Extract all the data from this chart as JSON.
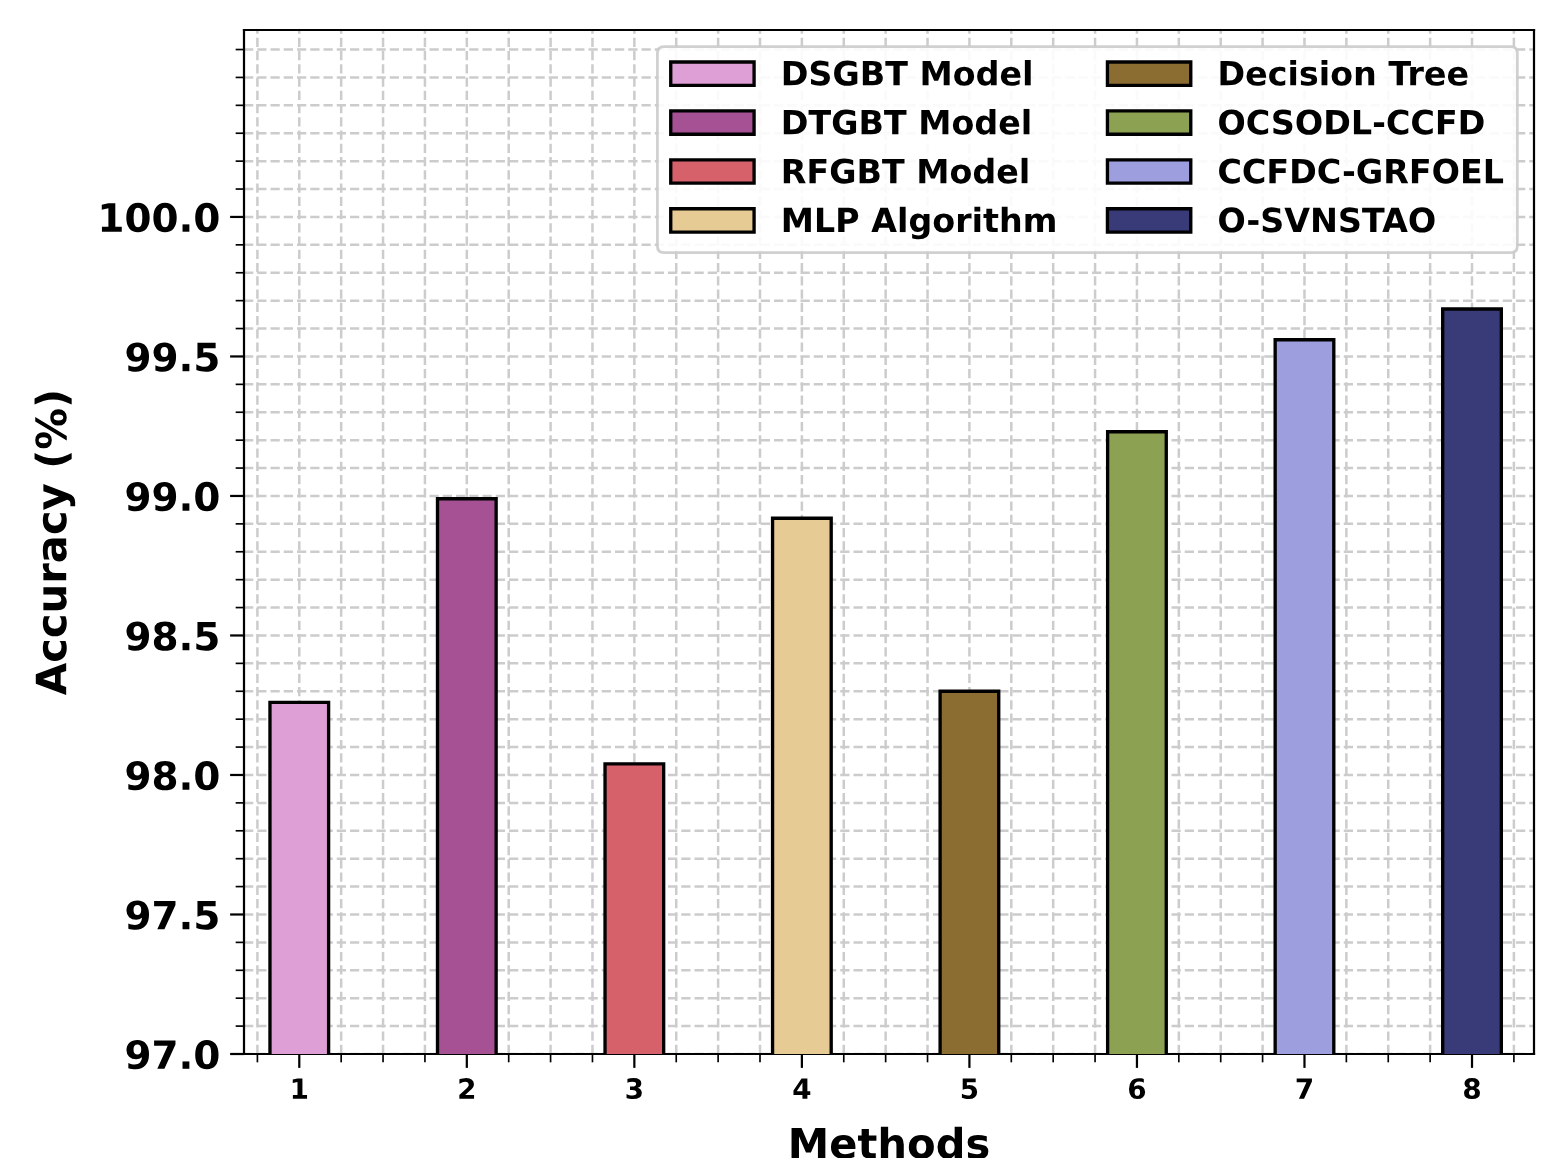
{
  "chart_data": {
    "type": "bar",
    "xlabel": "Methods",
    "ylabel": "Accuracy (%)",
    "categories": [
      "1",
      "2",
      "3",
      "4",
      "5",
      "6",
      "7",
      "8"
    ],
    "series": [
      {
        "name": "DSGBT Model",
        "color": "#de9ed6",
        "values": [
          98.26,
          null,
          null,
          null,
          null,
          null,
          null,
          null
        ]
      },
      {
        "name": "DTGBT Model",
        "color": "#a55194",
        "values": [
          null,
          98.99,
          null,
          null,
          null,
          null,
          null,
          null
        ]
      },
      {
        "name": "RFGBT Model",
        "color": "#d6616b",
        "values": [
          null,
          null,
          98.04,
          null,
          null,
          null,
          null,
          null
        ]
      },
      {
        "name": "MLP Algorithm",
        "color": "#e7cb94",
        "values": [
          null,
          null,
          null,
          98.92,
          null,
          null,
          null,
          null
        ]
      },
      {
        "name": "Decision Tree",
        "color": "#8c6d31",
        "values": [
          null,
          null,
          null,
          null,
          98.3,
          null,
          null,
          null
        ]
      },
      {
        "name": "OCSODL-CCFD",
        "color": "#8ca252",
        "values": [
          null,
          null,
          null,
          null,
          null,
          99.23,
          null,
          null
        ]
      },
      {
        "name": "CCFDC-GRFOEL",
        "color": "#9c9ede",
        "values": [
          null,
          null,
          null,
          null,
          null,
          null,
          99.56,
          null
        ]
      },
      {
        "name": "O-SVNSTAO",
        "color": "#393b79",
        "values": [
          null,
          null,
          null,
          null,
          null,
          null,
          null,
          99.67
        ]
      }
    ],
    "ylim": [
      97.0,
      100.67
    ],
    "yticks": [
      {
        "value": 97.0,
        "label": "97.0"
      },
      {
        "value": 97.5,
        "label": "97.5"
      },
      {
        "value": 98.0,
        "label": "98.0"
      },
      {
        "value": 98.5,
        "label": "98.5"
      },
      {
        "value": 99.0,
        "label": "99.0"
      },
      {
        "value": 99.5,
        "label": "99.5"
      },
      {
        "value": 100.0,
        "label": "100.0"
      }
    ],
    "grid": true,
    "legend": "top right"
  }
}
